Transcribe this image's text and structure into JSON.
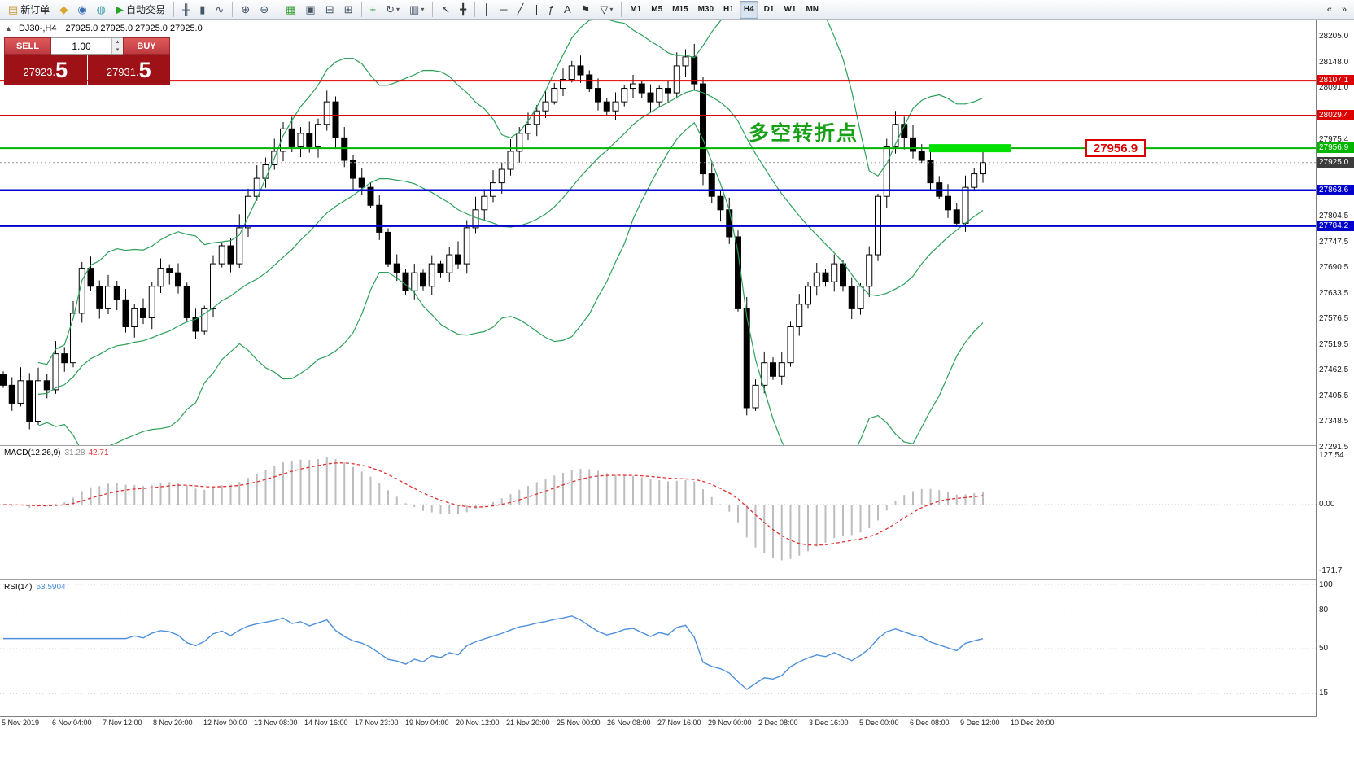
{
  "symbol_header": {
    "collapse_glyph": "▲",
    "symbol": "DJ30-,H4",
    "ohlc": "27925.0 27925.0 27925.0 27925.0"
  },
  "trade_panel": {
    "sell_label": "SELL",
    "buy_label": "BUY",
    "volume": "1.00",
    "spinner_up": "▴",
    "spinner_down": "▾",
    "sell_price": "27923.",
    "sell_price_big": "5",
    "buy_price": "27931.",
    "buy_price_big": "5"
  },
  "annotation": {
    "text": "多空转折点",
    "color": "#16a016"
  },
  "price_callout": {
    "text": "27956.9",
    "color": "#dd0000"
  },
  "price_lines": [
    {
      "label": "28107.1",
      "value": 28107.1,
      "color": "#dd0000",
      "width": 2
    },
    {
      "label": "28029.4",
      "value": 28029.4,
      "color": "#dd0000",
      "width": 2
    },
    {
      "label": "27956.9",
      "value": 27956.9,
      "color": "#00b400",
      "width": 2
    },
    {
      "label": "27863.6",
      "value": 27863.6,
      "color": "#0000cc",
      "width": 2.5
    },
    {
      "label": "27784.2",
      "value": 27784.2,
      "color": "#0000cc",
      "width": 2.5
    }
  ],
  "current_price": {
    "label": "27925.0",
    "value": 27925.0,
    "badge_color": "#3c3c3c"
  },
  "highlight_bar": {
    "value": 27956.9,
    "color": "#00e000"
  },
  "toolbar": {
    "dropdown_glyph": "▾",
    "groups": [
      {
        "name": "trade",
        "items": [
          {
            "name": "new-order-button",
            "glyph": "▤",
            "color": "#c8972f",
            "label": "新订单"
          },
          {
            "name": "profiles-button",
            "glyph": "◆",
            "color": "#dca62e"
          },
          {
            "name": "market-watch-button",
            "glyph": "◉",
            "color": "#3b6fb5"
          },
          {
            "name": "navigator-button",
            "glyph": "◍",
            "color": "#3aa0a8"
          },
          {
            "name": "auto-trading-button",
            "glyph": "▶",
            "color": "#28a228",
            "label": "自动交易"
          }
        ]
      },
      {
        "name": "chart-types",
        "items": [
          {
            "name": "ohlc-bars-button",
            "glyph": "╫",
            "color": "#445566"
          },
          {
            "name": "candlestick-button",
            "glyph": "▮",
            "color": "#445566"
          },
          {
            "name": "line-chart-button",
            "glyph": "∿",
            "color": "#445566"
          }
        ]
      },
      {
        "name": "zoom",
        "items": [
          {
            "name": "zoom-in-button",
            "glyph": "⊕",
            "color": "#445566"
          },
          {
            "name": "zoom-out-button",
            "glyph": "⊖",
            "color": "#445566"
          }
        ]
      },
      {
        "name": "windows",
        "items": [
          {
            "name": "grid-button",
            "glyph": "▦",
            "color": "#2a9a2a"
          },
          {
            "name": "cascade-windows-button",
            "glyph": "▣",
            "color": "#445566"
          },
          {
            "name": "tile-horizontally-button",
            "glyph": "⊟",
            "color": "#445566"
          },
          {
            "name": "tile-vertically-button",
            "glyph": "⊞",
            "color": "#445566"
          }
        ]
      },
      {
        "name": "chart-extras",
        "items": [
          {
            "name": "indicators-button",
            "glyph": "+",
            "color": "#1f9a1f"
          },
          {
            "name": "periods-button",
            "glyph": "↻",
            "color": "#445566",
            "dropdown": true
          },
          {
            "name": "templates-button",
            "glyph": "▥",
            "color": "#445566",
            "dropdown": true
          }
        ]
      },
      {
        "name": "cursor",
        "items": [
          {
            "name": "cursor-button",
            "glyph": "↖",
            "color": "#333333"
          },
          {
            "name": "crosshair-button",
            "glyph": "╋",
            "color": "#333333"
          }
        ]
      },
      {
        "name": "drawing",
        "items": [
          {
            "name": "vertical-line-button",
            "glyph": "│",
            "color": "#333333"
          },
          {
            "name": "horizontal-line-button",
            "glyph": "─",
            "color": "#333333"
          },
          {
            "name": "trendline-button",
            "glyph": "╱",
            "color": "#333333"
          },
          {
            "name": "channel-button",
            "glyph": "∥",
            "color": "#333333"
          },
          {
            "name": "fibonacci-button",
            "glyph": "ƒ",
            "color": "#333333"
          },
          {
            "name": "text-button",
            "glyph": "A",
            "color": "#333333"
          },
          {
            "name": "arrows-button",
            "glyph": "⚑",
            "color": "#333333"
          },
          {
            "name": "shapes-button",
            "glyph": "▽",
            "color": "#333333",
            "dropdown": true
          }
        ]
      },
      {
        "name": "timeframes",
        "items": [
          {
            "name": "timeframe-m1",
            "text": "M1"
          },
          {
            "name": "timeframe-m5",
            "text": "M5"
          },
          {
            "name": "timeframe-m15",
            "text": "M15"
          },
          {
            "name": "timeframe-m30",
            "text": "M30"
          },
          {
            "name": "timeframe-h1",
            "text": "H1"
          },
          {
            "name": "timeframe-h4",
            "text": "H4",
            "active": true
          },
          {
            "name": "timeframe-d1",
            "text": "D1"
          },
          {
            "name": "timeframe-w1",
            "text": "W1"
          },
          {
            "name": "timeframe-mn",
            "text": "MN"
          }
        ]
      }
    ],
    "overflow": [
      {
        "name": "toolbar-scroll-left-button",
        "glyph": "«"
      },
      {
        "name": "toolbar-scroll-right-button",
        "glyph": "»"
      }
    ]
  },
  "chart_data": {
    "type": "candlestick",
    "symbol": "DJ30-",
    "timeframe": "H4",
    "price_axis": {
      "min": 27291.5,
      "max": 28205.0,
      "ticks": [
        {
          "t": "28205.0",
          "v": 28205.0
        },
        {
          "t": "28148.0",
          "v": 28148.0
        },
        {
          "t": "28091.0",
          "v": 28091.0
        },
        {
          "t": "27975.4",
          "v": 27975.4
        },
        {
          "t": "27804.5",
          "v": 27804.5
        },
        {
          "t": "27747.5",
          "v": 27747.5
        },
        {
          "t": "27690.5",
          "v": 27690.5
        },
        {
          "t": "27633.5",
          "v": 27633.5
        },
        {
          "t": "27576.5",
          "v": 27576.5
        },
        {
          "t": "27519.5",
          "v": 27519.5
        },
        {
          "t": "27462.5",
          "v": 27462.5
        },
        {
          "t": "27405.5",
          "v": 27405.5
        },
        {
          "t": "27348.5",
          "v": 27348.5
        },
        {
          "t": "27291.5",
          "v": 27291.5
        }
      ]
    },
    "candles_close": [
      27430,
      27390,
      27440,
      27350,
      27440,
      27420,
      27500,
      27480,
      27590,
      27690,
      27650,
      27600,
      27650,
      27620,
      27560,
      27600,
      27580,
      27650,
      27690,
      27680,
      27650,
      27580,
      27550,
      27600,
      27700,
      27740,
      27700,
      27780,
      27850,
      27890,
      27920,
      27950,
      28000,
      27960,
      27990,
      27960,
      28010,
      28060,
      27980,
      27930,
      27890,
      27870,
      27830,
      27770,
      27700,
      27680,
      27640,
      27680,
      27650,
      27700,
      27680,
      27720,
      27700,
      27780,
      27820,
      27850,
      27880,
      27910,
      27950,
      27990,
      28010,
      28040,
      28060,
      28090,
      28110,
      28140,
      28120,
      28090,
      28060,
      28040,
      28060,
      28090,
      28100,
      28080,
      28060,
      28090,
      28080,
      28140,
      28160,
      28100,
      27900,
      27850,
      27820,
      27760,
      27600,
      27380,
      27430,
      27480,
      27450,
      27480,
      27560,
      27610,
      27650,
      27680,
      27660,
      27700,
      27650,
      27600,
      27650,
      27720,
      27850,
      27960,
      28010,
      27980,
      27950,
      27930,
      27880,
      27850,
      27820,
      27790,
      27870,
      27900,
      27925
    ],
    "bollinger": {
      "period": 20,
      "deviation": 2,
      "color": "#2ca05a"
    },
    "macd": {
      "label": "MACD(12,26,9)",
      "value_main": "31.28",
      "value_signal": "42.71",
      "axis_labels": [
        "127.54",
        "0.00",
        "-171.7"
      ],
      "histogram_color": "#bdbdbd",
      "signal_color": "#e03030"
    },
    "rsi": {
      "label": "RSI(14)",
      "value": "53.5904",
      "axis_labels": [
        "100",
        "80",
        "50",
        "15"
      ],
      "levels": [
        100,
        80,
        50,
        15
      ],
      "line_color": "#4d8fdb"
    },
    "x_labels": [
      "5 Nov 2019",
      "6 Nov 04:00",
      "7 Nov 12:00",
      "8 Nov 20:00",
      "12 Nov 00:00",
      "13 Nov 08:00",
      "14 Nov 16:00",
      "17 Nov 23:00",
      "19 Nov 04:00",
      "20 Nov 12:00",
      "21 Nov 20:00",
      "25 Nov 00:00",
      "26 Nov 08:00",
      "27 Nov 16:00",
      "29 Nov 00:00",
      "2 Dec 08:00",
      "3 Dec 16:00",
      "5 Dec 00:00",
      "6 Dec 08:00",
      "9 Dec 12:00",
      "10 Dec 20:00"
    ]
  }
}
